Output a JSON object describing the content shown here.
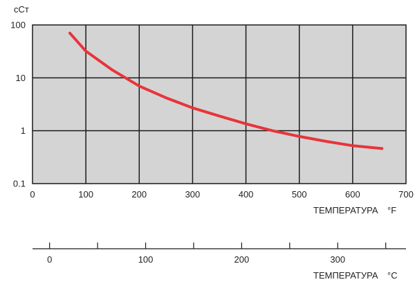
{
  "chart_data": {
    "type": "line",
    "y_unit_label": "сСт",
    "y_scale": "log",
    "ylim": [
      0.1,
      100
    ],
    "y_ticks": [
      "100",
      "10",
      "1",
      "0.1"
    ],
    "x_label": "ТЕМПЕРАТУРА",
    "x_unit": "°F",
    "xlim": [
      0,
      700
    ],
    "x_ticks": [
      "0",
      "100",
      "200",
      "300",
      "400",
      "500",
      "600",
      "700"
    ],
    "x2_label": "ТЕМПЕРАТУРА",
    "x2_unit": "°C",
    "x2_ticks": [
      "0",
      "100",
      "200",
      "300"
    ],
    "grid": true,
    "colors": {
      "plot_bg": "#d4d4d4",
      "line": "#e8343a",
      "grid": "#1a1a1a"
    },
    "series": [
      {
        "x": [
          70,
          100,
          150,
          200,
          250,
          300,
          350,
          400,
          450,
          500,
          550,
          600,
          655
        ],
        "y": [
          70,
          32,
          14,
          7,
          4.2,
          2.7,
          1.9,
          1.35,
          1.0,
          0.78,
          0.63,
          0.52,
          0.46
        ]
      }
    ]
  }
}
